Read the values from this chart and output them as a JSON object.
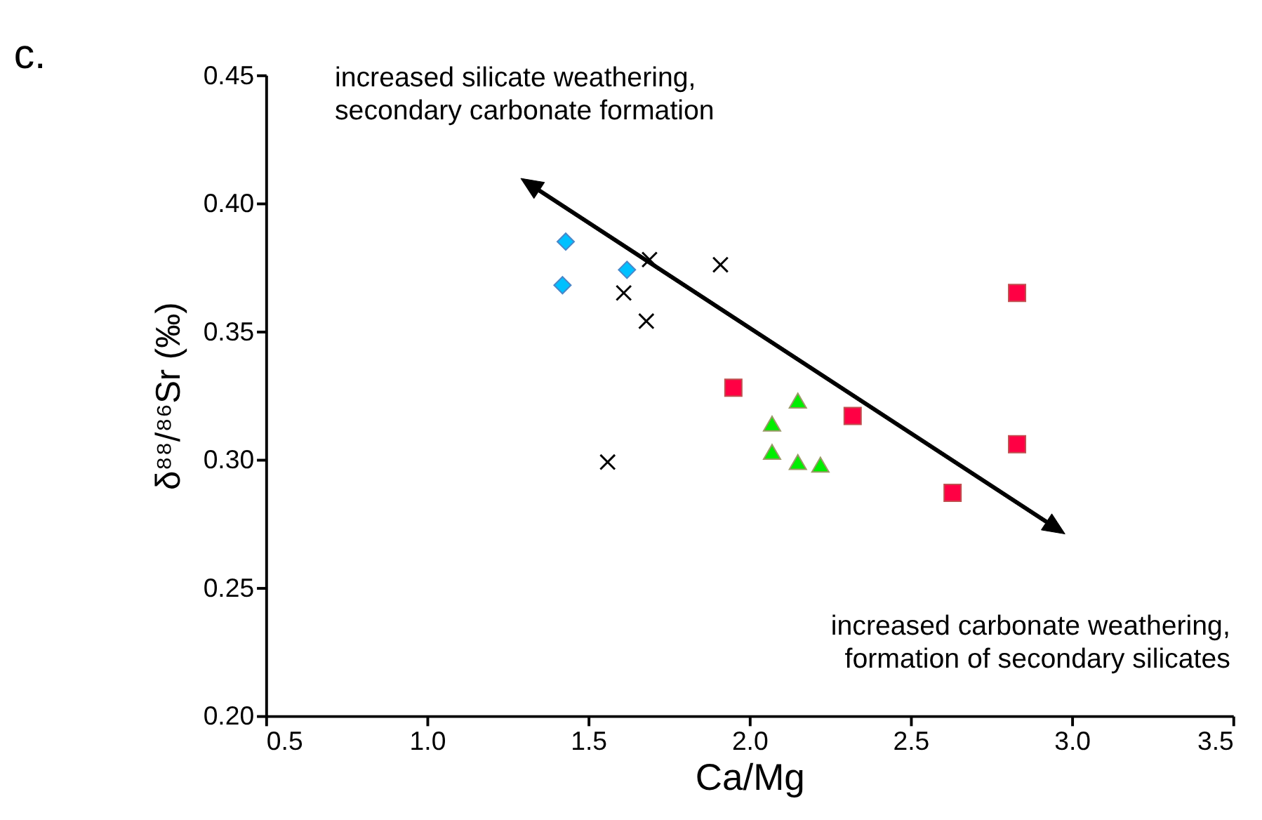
{
  "chart_data": {
    "type": "scatter",
    "title": "c.",
    "xlabel": "Ca/Mg",
    "ylabel": "δ⁸⁸/⁸⁶Sr (‰)",
    "series": [
      {
        "color": "#00c0ff",
        "marker": "diamond",
        "x": [
          1.43,
          1.42,
          1.62
        ],
        "values": [
          0.385,
          0.368,
          0.374
        ]
      },
      {
        "color": "#000000",
        "marker": "cross",
        "x": [
          1.69,
          1.91,
          1.61,
          1.68,
          1.56
        ],
        "values": [
          0.378,
          0.376,
          0.365,
          0.354,
          0.299
        ]
      },
      {
        "color": "#ff0044",
        "marker": "square",
        "x": [
          1.95,
          2.32,
          2.83,
          2.83,
          2.63
        ],
        "values": [
          0.328,
          0.317,
          0.365,
          0.306,
          0.287
        ]
      },
      {
        "color": "#00ee00",
        "marker": "triangle",
        "x": [
          2.15,
          2.07,
          2.07,
          2.15,
          2.22
        ],
        "values": [
          0.323,
          0.314,
          0.303,
          0.299,
          0.298
        ]
      }
    ],
    "xlim": [
      0.5,
      3.5
    ],
    "xticks": [
      {
        "value": 0.5,
        "label": "0.5"
      },
      {
        "value": 1,
        "label": "1.0"
      },
      {
        "value": 1.5,
        "label": "1.5"
      },
      {
        "value": 2,
        "label": "2.0"
      },
      {
        "value": 2.5,
        "label": "2.5"
      },
      {
        "value": 3,
        "label": "3.0"
      },
      {
        "value": 3.5,
        "label": "3.5"
      }
    ],
    "ylim": [
      0.2,
      0.45
    ],
    "yticks": [
      {
        "value": 0.2,
        "label": "0.20"
      },
      {
        "value": 0.25,
        "label": "0.25"
      },
      {
        "value": 0.3,
        "label": "0.30"
      },
      {
        "value": 0.35,
        "label": "0.35"
      },
      {
        "value": 0.4,
        "label": "0.40"
      },
      {
        "value": 0.45,
        "label": "0.45"
      }
    ],
    "annotations": [
      "increased silicate weathering,\nsecondary carbonate formation",
      "increased carbonate weathering,\nformation of secondary silicates"
    ],
    "grid": false
  }
}
